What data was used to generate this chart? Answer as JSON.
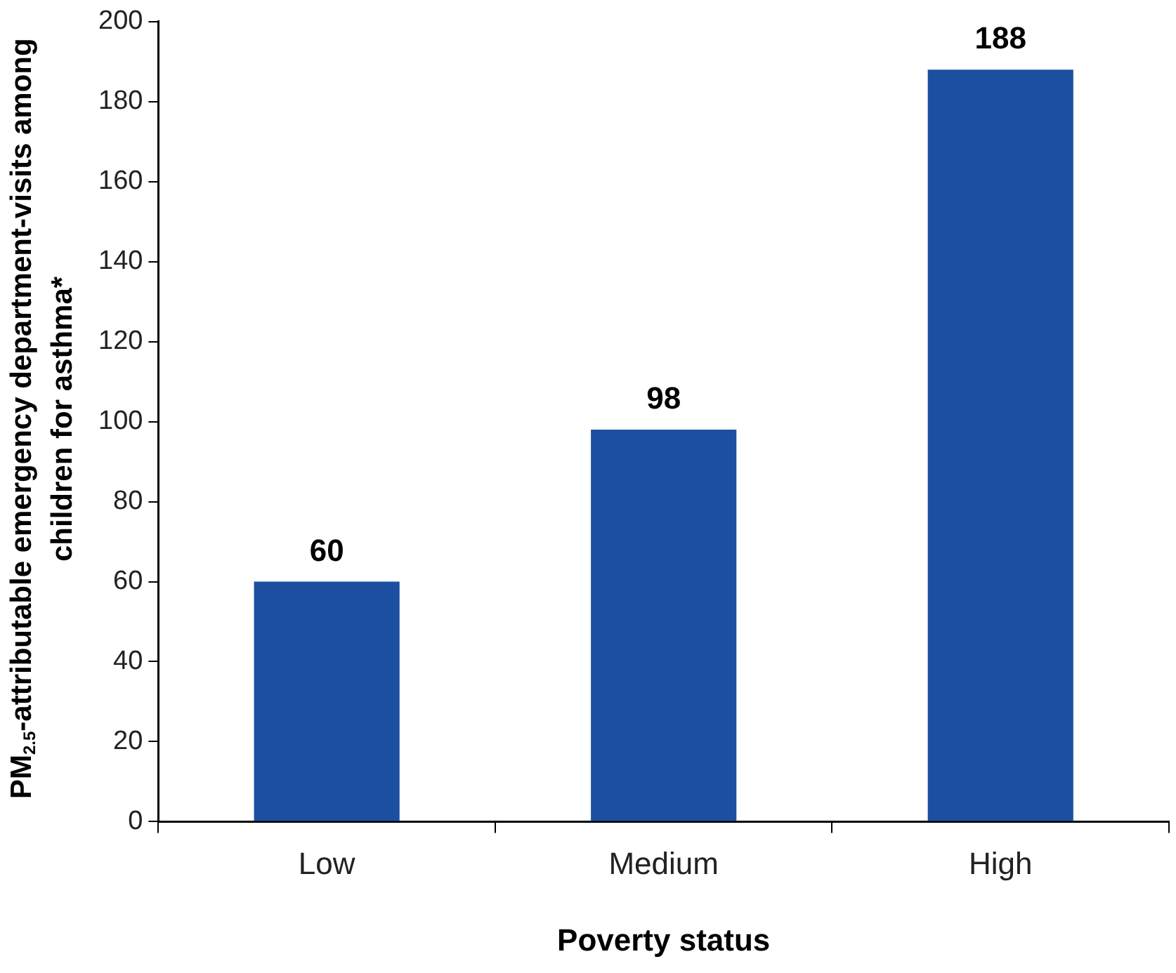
{
  "chart_data": {
    "type": "bar",
    "xlabel": "Poverty status",
    "ylabel": "PM$_{2.5}$-attributable emergency department-visits among children for asthma*",
    "categories": [
      "Low",
      "Medium",
      "High"
    ],
    "values": [
      60,
      98,
      188
    ],
    "color": "#1c4f9f",
    "ylim": [
      0,
      200
    ],
    "yticks": [
      0,
      20,
      40,
      60,
      80,
      100,
      120,
      140,
      160,
      180,
      200
    ],
    "grid": false,
    "legend": false,
    "data_labels": true
  }
}
